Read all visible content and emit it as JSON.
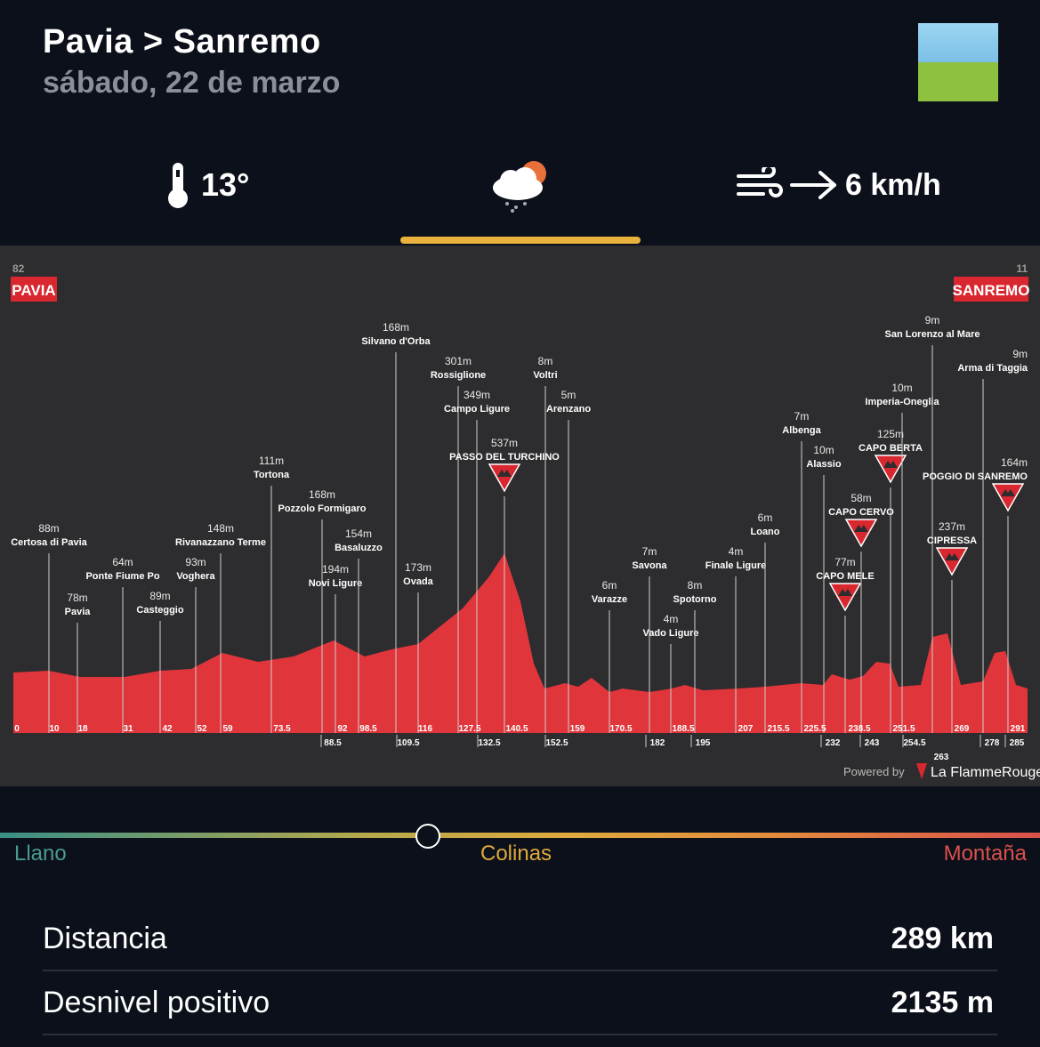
{
  "header": {
    "title": "Pavia > Sanremo",
    "date": "sábado, 22 de marzo"
  },
  "weather": {
    "temperature": "13°",
    "icon": "cloud-sun-rain-icon",
    "wind": "6 km/h"
  },
  "profile": {
    "start": {
      "name": "PAVIA",
      "alt": "82"
    },
    "finish": {
      "name": "SANREMO",
      "alt": "11"
    },
    "powered_by": "Powered by",
    "brand": "La FlammeRouge",
    "waypoints": [
      {
        "alt": "88m",
        "name": "Certosa di Pavia"
      },
      {
        "alt": "78m",
        "name": "Pavia"
      },
      {
        "alt": "64m",
        "name": "Ponte Fiume Po"
      },
      {
        "alt": "89m",
        "name": "Casteggio"
      },
      {
        "alt": "93m",
        "name": "Voghera"
      },
      {
        "alt": "148m",
        "name": "Rivanazzano Terme"
      },
      {
        "alt": "111m",
        "name": "Tortona"
      },
      {
        "alt": "168m",
        "name": "Pozzolo Formigaro"
      },
      {
        "alt": "194m",
        "name": "Novi Ligure"
      },
      {
        "alt": "154m",
        "name": "Basaluzzo"
      },
      {
        "alt": "168m",
        "name": "Silvano d'Orba"
      },
      {
        "alt": "173m",
        "name": "Ovada"
      },
      {
        "alt": "301m",
        "name": "Rossiglione"
      },
      {
        "alt": "349m",
        "name": "Campo Ligure"
      },
      {
        "alt": "537m",
        "name": "PASSO DEL TURCHINO"
      },
      {
        "alt": "8m",
        "name": "Voltri"
      },
      {
        "alt": "5m",
        "name": "Arenzano"
      },
      {
        "alt": "6m",
        "name": "Varazze"
      },
      {
        "alt": "7m",
        "name": "Savona"
      },
      {
        "alt": "4m",
        "name": "Vado Ligure"
      },
      {
        "alt": "8m",
        "name": "Spotorno"
      },
      {
        "alt": "4m",
        "name": "Finale Ligure"
      },
      {
        "alt": "6m",
        "name": "Loano"
      },
      {
        "alt": "7m",
        "name": "Albenga"
      },
      {
        "alt": "10m",
        "name": "Alassio"
      },
      {
        "alt": "77m",
        "name": "CAPO MELE"
      },
      {
        "alt": "58m",
        "name": "CAPO CERVO"
      },
      {
        "alt": "125m",
        "name": "CAPO BERTA"
      },
      {
        "alt": "10m",
        "name": "Imperia-Oneglia"
      },
      {
        "alt": "9m",
        "name": "San Lorenzo al Mare"
      },
      {
        "alt": "237m",
        "name": "CIPRESSA"
      },
      {
        "alt": "9m",
        "name": "Arma di Taggia"
      },
      {
        "alt": "164m",
        "name": "POGGIO DI SANREMO"
      }
    ],
    "km_top": [
      "0",
      "10",
      "18",
      "31",
      "42",
      "52",
      "59",
      "73.5",
      "92",
      "98.5",
      "116",
      "127.5",
      "140.5",
      "159",
      "170.5",
      "188.5",
      "207",
      "215.5",
      "225.5",
      "238.5",
      "251.5",
      "269",
      "291"
    ],
    "km_bottom": [
      "88.5",
      "109.5",
      "132.5",
      "152.5",
      "182",
      "195",
      "232",
      "243",
      "254.5",
      "278",
      "285"
    ],
    "km_extra": "263"
  },
  "scale": {
    "left": "Llano",
    "middle": "Colinas",
    "right": "Montaña",
    "colors": {
      "left": "#3a8f86",
      "middle": "#e0a93d",
      "right": "#d9514b"
    }
  },
  "stats": [
    {
      "label": "Distancia",
      "value": "289 km"
    },
    {
      "label": "Desnivel positivo",
      "value": "2135 m"
    }
  ],
  "colors": {
    "background": "#0b101a",
    "accent": "#e8b23d",
    "profile_red": "#e0353b",
    "profile_bg": "#2d2d2f"
  }
}
